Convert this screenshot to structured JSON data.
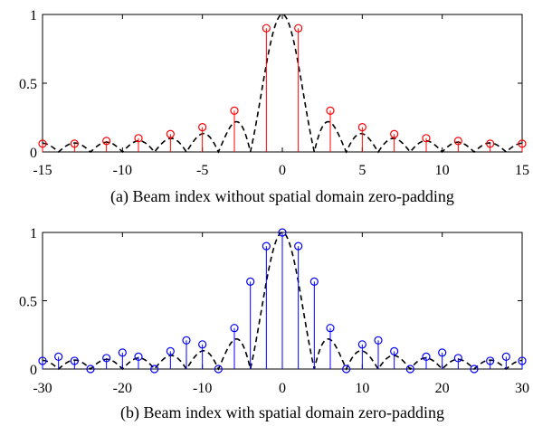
{
  "chart_data": [
    {
      "type": "stem",
      "caption": "(a) Beam index without spatial domain zero-padding",
      "color": "#ff0000",
      "xlim": [
        -15,
        15
      ],
      "ylim": [
        0,
        1
      ],
      "xticks": [
        -15,
        -10,
        -5,
        0,
        5,
        10,
        15
      ],
      "yticks": [
        0,
        0.5,
        1
      ],
      "envelope_style": "dashed-black",
      "x": [
        -15,
        -13,
        -11,
        -9,
        -7,
        -5,
        -3,
        -1,
        1,
        3,
        5,
        7,
        9,
        11,
        13,
        15
      ],
      "values": [
        0.06,
        0.06,
        0.08,
        0.1,
        0.13,
        0.18,
        0.3,
        0.9,
        0.9,
        0.3,
        0.18,
        0.13,
        0.1,
        0.08,
        0.06,
        0.06
      ]
    },
    {
      "type": "stem",
      "caption": "(b) Beam index with spatial domain zero-padding",
      "color": "#0000ff",
      "xlim": [
        -30,
        30
      ],
      "ylim": [
        0,
        1
      ],
      "xticks": [
        -30,
        -20,
        -10,
        0,
        10,
        20,
        30
      ],
      "yticks": [
        0,
        0.5,
        1
      ],
      "envelope_style": "dashed-black",
      "x": [
        -30,
        -28,
        -26,
        -24,
        -22,
        -20,
        -18,
        -16,
        -14,
        -12,
        -10,
        -8,
        -6,
        -4,
        -2,
        0,
        2,
        4,
        6,
        8,
        10,
        12,
        14,
        16,
        18,
        20,
        22,
        24,
        26,
        28,
        30
      ],
      "values": [
        0.06,
        0.09,
        0.06,
        0.0,
        0.08,
        0.12,
        0.09,
        0.0,
        0.13,
        0.21,
        0.18,
        0.0,
        0.3,
        0.64,
        0.9,
        1.0,
        0.9,
        0.64,
        0.3,
        0.0,
        0.18,
        0.21,
        0.13,
        0.0,
        0.09,
        0.12,
        0.08,
        0.0,
        0.06,
        0.09,
        0.06
      ]
    }
  ]
}
